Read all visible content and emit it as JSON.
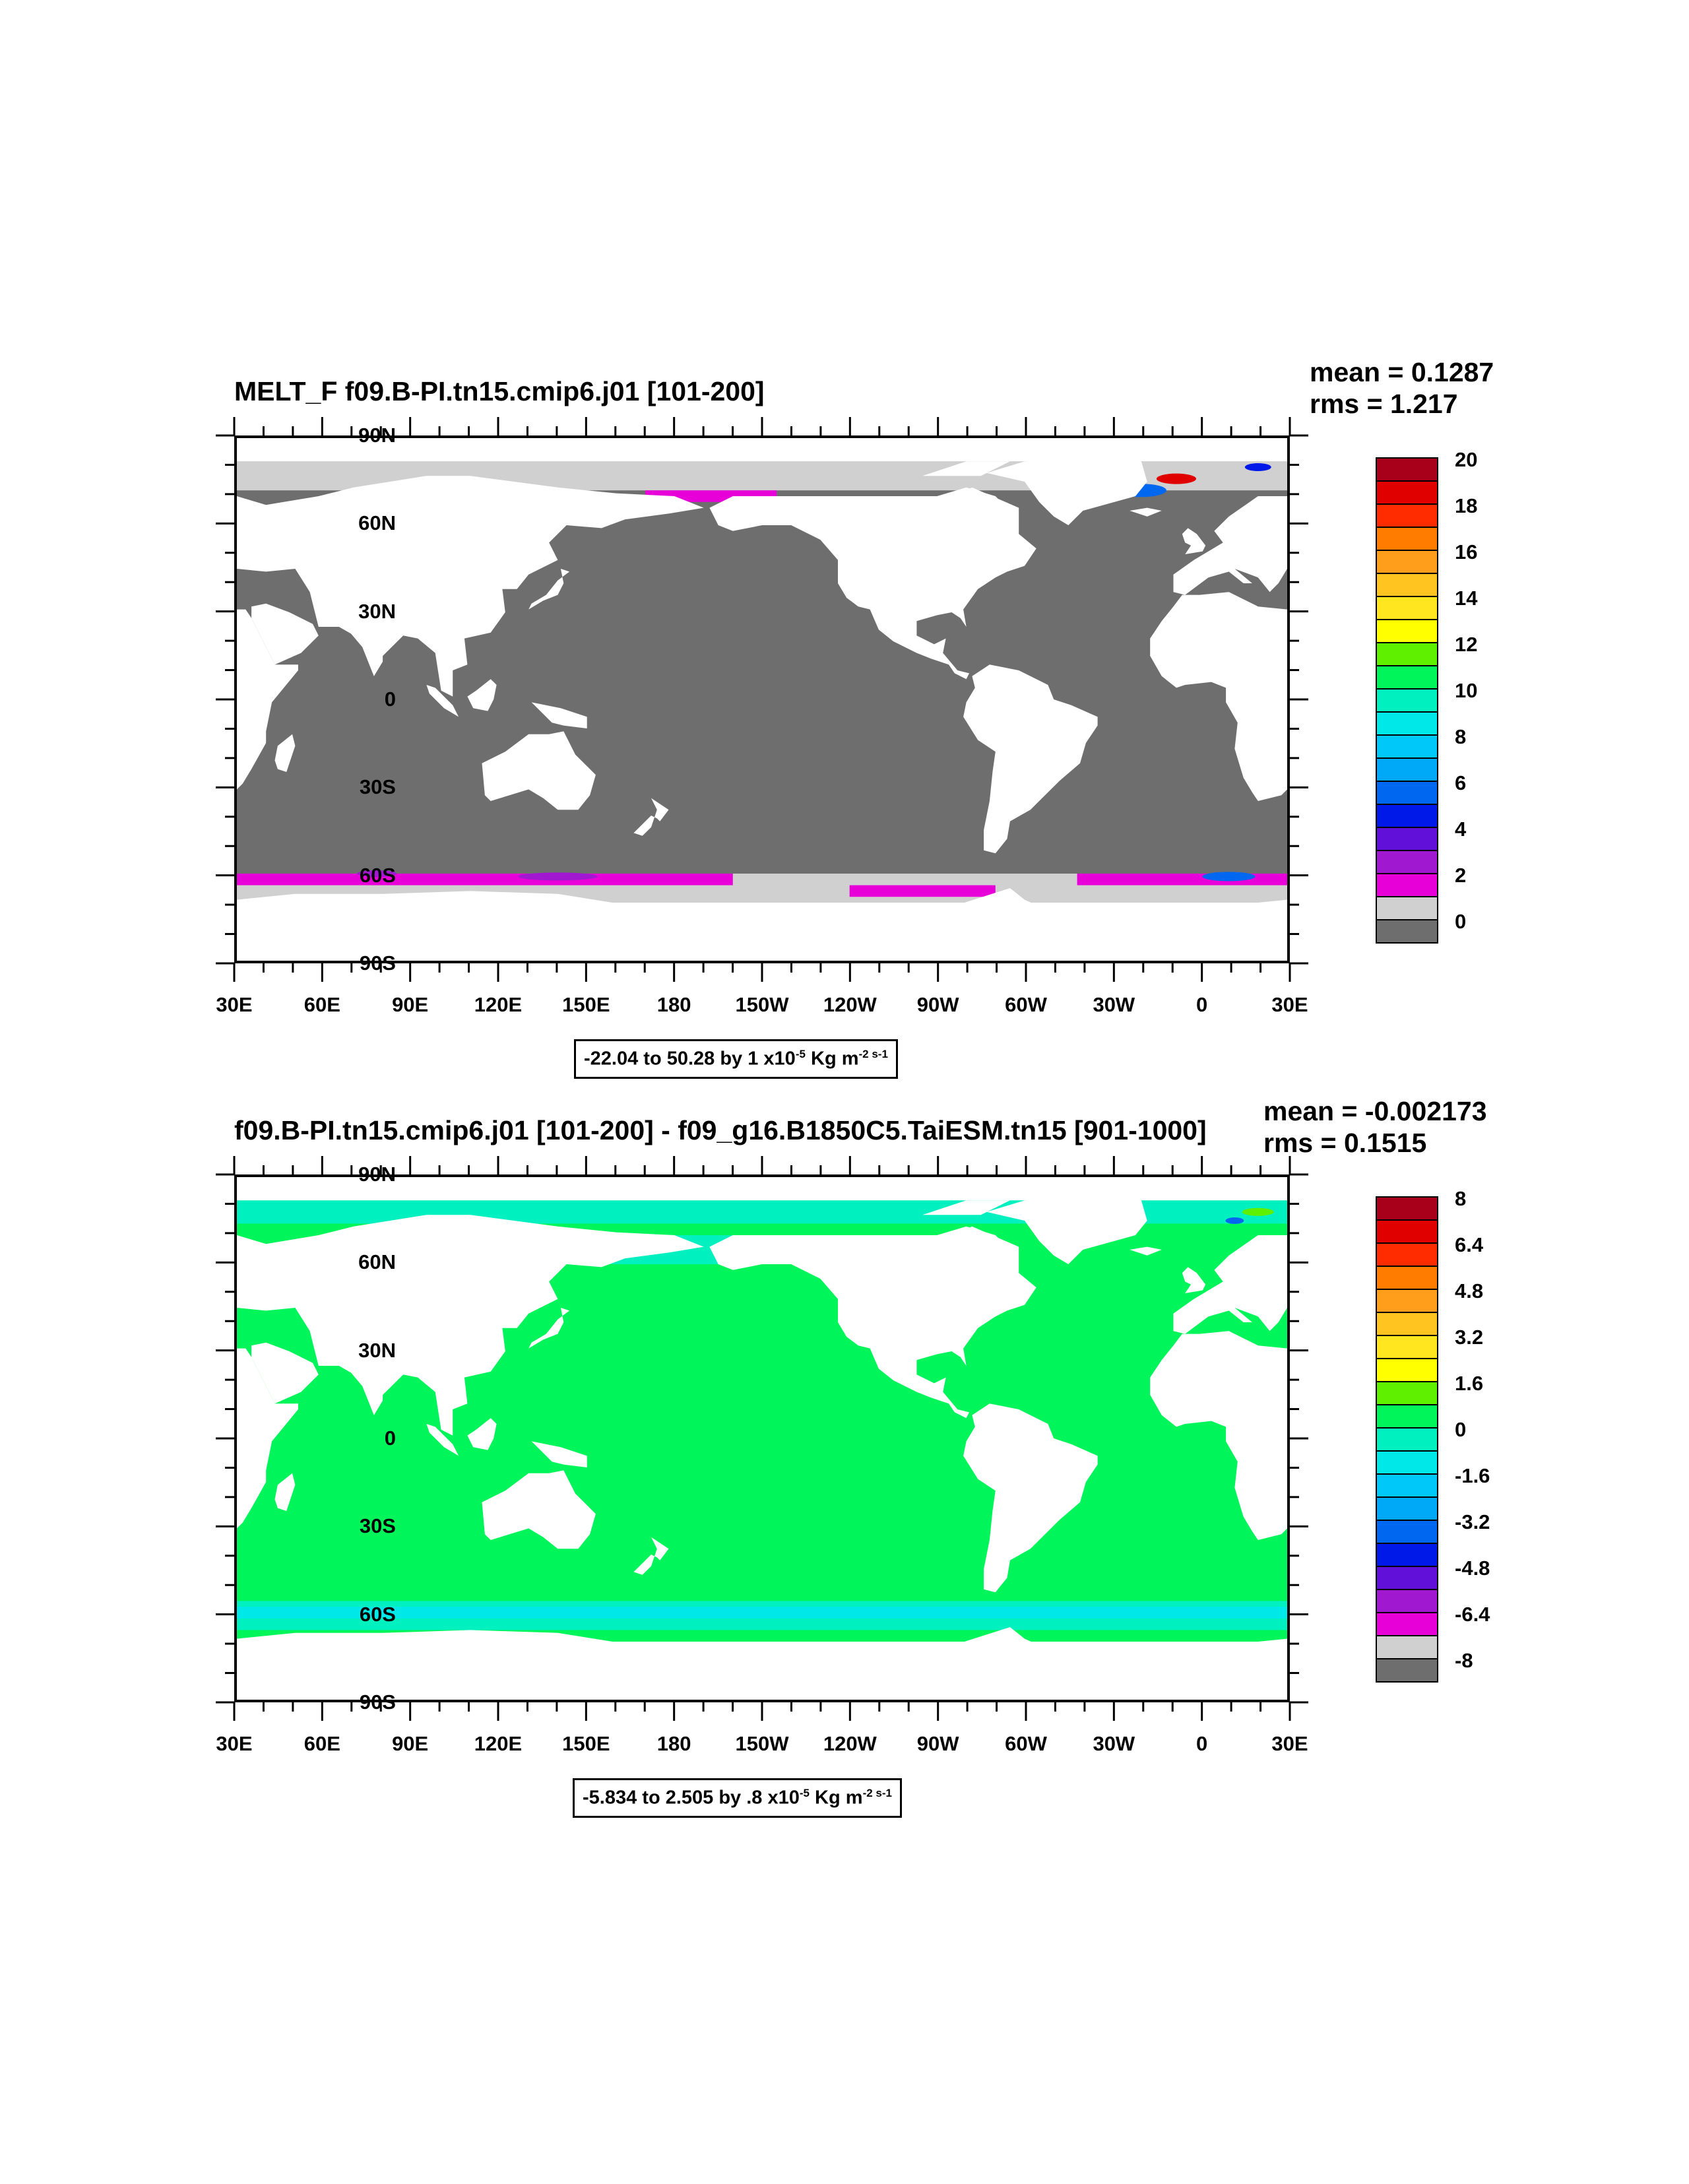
{
  "panels": [
    {
      "title": "MELT_F f09.B-PI.tn15.cmip6.j01 [101-200]",
      "mean": "mean = 0.1287",
      "rms": "rms = 1.217",
      "range_text": "-22.04 to 50.28 by 1 x10",
      "range_exp": "-5",
      "range_units": " Kg m",
      "range_units_exp": "-2 s-1",
      "colorbar_labels": [
        "20",
        "18",
        "16",
        "14",
        "12",
        "10",
        "8",
        "6",
        "4",
        "2",
        "0"
      ],
      "colorbar_colors": [
        "#a8001a",
        "#e00000",
        "#ff2c00",
        "#ff7c00",
        "#ff9e1a",
        "#ffc420",
        "#ffe61e",
        "#ffff00",
        "#5ff000",
        "#00f55a",
        "#00f0c0",
        "#00e8e8",
        "#00c8f8",
        "#00a8f8",
        "#0068f0",
        "#0018e8",
        "#6010d8",
        "#a018d0",
        "#e800d8",
        "#d0d0d0",
        "#6e6e6e"
      ],
      "ocean_color": "#6e6e6e",
      "map_style": "melt"
    },
    {
      "title": "f09.B-PI.tn15.cmip6.j01 [101-200] - f09_g16.B1850C5.TaiESM.tn15 [901-1000]",
      "mean": "mean = -0.002173",
      "rms": "rms = 0.1515",
      "range_text": "-5.834 to 2.505 by .8 x10",
      "range_exp": "-5",
      "range_units": " Kg m",
      "range_units_exp": "-2 s-1",
      "colorbar_labels": [
        "8",
        "6.4",
        "4.8",
        "3.2",
        "1.6",
        "0",
        "-1.6",
        "-3.2",
        "-4.8",
        "-6.4",
        "-8"
      ],
      "colorbar_colors": [
        "#a8001a",
        "#e00000",
        "#ff2c00",
        "#ff7c00",
        "#ff9e1a",
        "#ffc420",
        "#ffe61e",
        "#ffff00",
        "#5ff000",
        "#00f55a",
        "#00f0c0",
        "#00e8e8",
        "#00c8f8",
        "#00a8f8",
        "#0068f0",
        "#0018e8",
        "#6010d8",
        "#a018d0",
        "#e800d8",
        "#d0d0d0",
        "#6e6e6e"
      ],
      "ocean_color": "#00f55a",
      "map_style": "diff"
    }
  ],
  "y_axis_labels": [
    "90N",
    "60N",
    "30N",
    "0",
    "30S",
    "60S",
    "90S"
  ],
  "x_axis_labels": [
    "30E",
    "60E",
    "90E",
    "120E",
    "150E",
    "180",
    "150W",
    "120W",
    "90W",
    "60W",
    "30W",
    "0",
    "30E"
  ]
}
